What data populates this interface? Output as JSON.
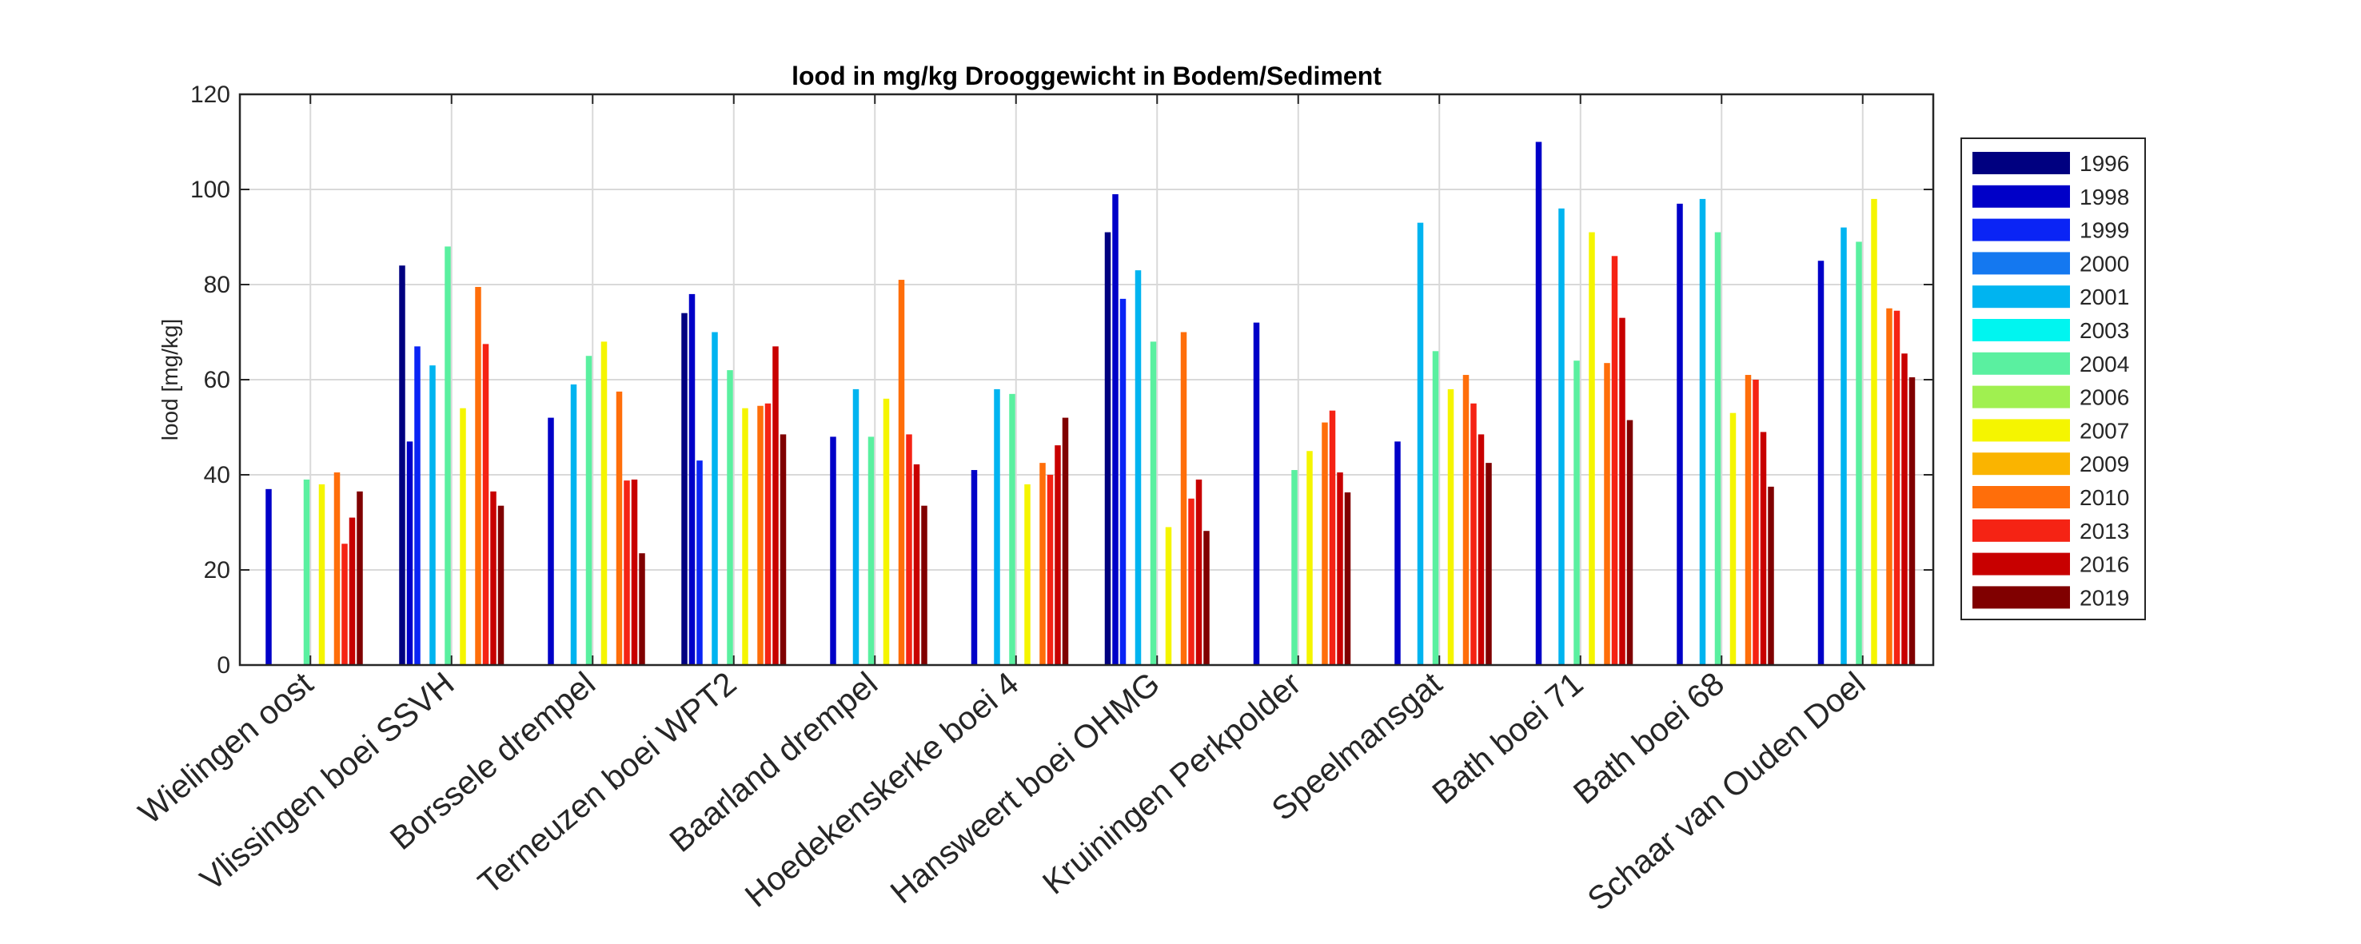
{
  "chart_data": {
    "type": "bar",
    "title": "lood in mg/kg Drooggewicht in Bodem/Sediment",
    "xlabel": "",
    "ylabel": "lood [mg/kg]",
    "ylim": [
      0,
      120
    ],
    "yticks": [
      0,
      20,
      40,
      60,
      80,
      100,
      120
    ],
    "grid": true,
    "legend_position": "right",
    "categories": [
      "Wielingen oost",
      "Vlissingen boei SSVH",
      "Borssele drempel",
      "Terneuzen boei WPT2",
      "Baarland drempel",
      "Hoedekenskerke boei 4",
      "Hansweert boei OHMG",
      "Kruiningen Perkpolder",
      "Speelmansgat",
      "Bath boei 71",
      "Bath boei 68",
      "Schaar van Ouden Doel"
    ],
    "series": [
      {
        "name": "1996",
        "color": "#000080",
        "values": [
          null,
          84,
          null,
          74,
          null,
          null,
          91,
          null,
          null,
          null,
          null,
          null
        ]
      },
      {
        "name": "1998",
        "color": "#0000C8",
        "values": [
          37,
          47,
          52,
          78,
          48,
          41,
          99,
          72,
          47,
          110,
          97,
          85
        ]
      },
      {
        "name": "1999",
        "color": "#0A24F5",
        "values": [
          null,
          67,
          null,
          43,
          null,
          null,
          77,
          null,
          null,
          null,
          null,
          null
        ]
      },
      {
        "name": "2000",
        "color": "#1478F0",
        "values": [
          null,
          null,
          null,
          null,
          null,
          null,
          null,
          null,
          null,
          null,
          null,
          null
        ]
      },
      {
        "name": "2001",
        "color": "#00B4F0",
        "values": [
          null,
          63,
          59,
          70,
          58,
          58,
          83,
          null,
          93,
          96,
          98,
          92
        ]
      },
      {
        "name": "2003",
        "color": "#00F5F0",
        "values": [
          null,
          null,
          null,
          null,
          null,
          null,
          null,
          null,
          null,
          null,
          null,
          null
        ]
      },
      {
        "name": "2004",
        "color": "#5AF0A0",
        "values": [
          39,
          88,
          65,
          62,
          48,
          57,
          68,
          41,
          66,
          64,
          91,
          89
        ]
      },
      {
        "name": "2006",
        "color": "#A0F050",
        "values": [
          null,
          null,
          null,
          null,
          null,
          null,
          null,
          null,
          null,
          null,
          null,
          null
        ]
      },
      {
        "name": "2007",
        "color": "#F5F500",
        "values": [
          38,
          54,
          68,
          54,
          56,
          38,
          29,
          45,
          58,
          91,
          53,
          98
        ]
      },
      {
        "name": "2009",
        "color": "#FAB400",
        "values": [
          null,
          null,
          null,
          null,
          null,
          null,
          null,
          null,
          null,
          null,
          null,
          null
        ]
      },
      {
        "name": "2010",
        "color": "#FF6E0A",
        "values": [
          40.5,
          79.5,
          57.5,
          54.5,
          81,
          42.5,
          70,
          51,
          61,
          63.5,
          61,
          75
        ]
      },
      {
        "name": "2013",
        "color": "#F52314",
        "values": [
          25.5,
          67.5,
          38.8,
          55,
          48.5,
          40,
          35,
          53.5,
          55,
          86,
          60,
          74.5
        ]
      },
      {
        "name": "2016",
        "color": "#C80000",
        "values": [
          31,
          36.5,
          39,
          67,
          42.2,
          46.2,
          39,
          40.5,
          48.5,
          73,
          49,
          65.5
        ]
      },
      {
        "name": "2019",
        "color": "#800000",
        "values": [
          36.5,
          33.5,
          23.5,
          48.5,
          33.5,
          52,
          28.2,
          36.3,
          42.5,
          51.5,
          37.5,
          60.5
        ]
      }
    ]
  }
}
